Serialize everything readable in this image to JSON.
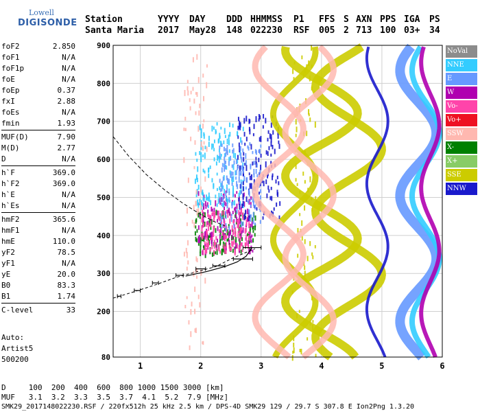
{
  "logo": {
    "top": "Lowell",
    "bottom": "DIGISONDE"
  },
  "header": {
    "labels": [
      "Station",
      "YYYY",
      "DAY",
      "DDD",
      "HHMMSS",
      "P1",
      "FFS",
      "S",
      "AXN",
      "PPS",
      "IGA",
      "PS"
    ],
    "values": [
      "Santa Maria",
      "2017",
      "May28",
      "148",
      "022230",
      "RSF",
      "005",
      "2",
      "713",
      "100",
      "03+",
      "34"
    ]
  },
  "parameters": [
    [
      {
        "name": "foF2",
        "value": "2.850"
      },
      {
        "name": "foF1",
        "value": "N/A"
      },
      {
        "name": "foF1p",
        "value": "N/A"
      },
      {
        "name": "foE",
        "value": "N/A"
      },
      {
        "name": "foEp",
        "value": "0.37"
      },
      {
        "name": "fxI",
        "value": "2.88"
      },
      {
        "name": "foEs",
        "value": "N/A"
      },
      {
        "name": "fmin",
        "value": "1.93"
      }
    ],
    [
      {
        "name": "MUF(D)",
        "value": "7.90"
      },
      {
        "name": "M(D)",
        "value": "2.77"
      },
      {
        "name": "D",
        "value": "N/A"
      }
    ],
    [
      {
        "name": "h`F",
        "value": "369.0"
      },
      {
        "name": "h`F2",
        "value": "369.0"
      },
      {
        "name": "h`E",
        "value": "N/A"
      },
      {
        "name": "h`Es",
        "value": "N/A"
      }
    ],
    [
      {
        "name": "hmF2",
        "value": "365.6"
      },
      {
        "name": "hmF1",
        "value": "N/A"
      },
      {
        "name": "hmE",
        "value": "110.0"
      },
      {
        "name": "yF2",
        "value": "78.5"
      },
      {
        "name": "yF1",
        "value": "N/A"
      },
      {
        "name": "yE",
        "value": "20.0"
      },
      {
        "name": "B0",
        "value": "83.3"
      },
      {
        "name": "B1",
        "value": "1.74"
      }
    ],
    [
      {
        "name": "C-level",
        "value": "33"
      }
    ]
  ],
  "auto": {
    "line1": "Auto:",
    "line2": "Artist5",
    "line3": "500200"
  },
  "legend": [
    {
      "label": "NoVal",
      "color": "#8c8c8c"
    },
    {
      "label": "NNE",
      "color": "#33ccff"
    },
    {
      "label": "E",
      "color": "#6699ff"
    },
    {
      "label": "W",
      "color": "#b000b0"
    },
    {
      "label": "Vo-",
      "color": "#ff44aa"
    },
    {
      "label": "Vo+",
      "color": "#ee1122"
    },
    {
      "label": "SSW",
      "color": "#ffb8b0"
    },
    {
      "label": "X-",
      "color": "#008000"
    },
    {
      "label": "X+",
      "color": "#88cc66"
    },
    {
      "label": "SSE",
      "color": "#cccc00"
    },
    {
      "label": "NNW",
      "color": "#1a1acc"
    }
  ],
  "chart_data": {
    "type": "scatter",
    "x_ticks": [
      "1",
      "2",
      "3",
      "4",
      "5",
      "6"
    ],
    "y_ticks": [
      "80",
      "200",
      "300",
      "400",
      "500",
      "600",
      "700",
      "800",
      "900"
    ],
    "xlim": [
      0.55,
      6.0
    ],
    "ylim": [
      80,
      900
    ],
    "profile_dashed": [
      [
        0.55,
        660
      ],
      [
        0.8,
        610
      ],
      [
        1.1,
        560
      ],
      [
        1.4,
        520
      ],
      [
        1.7,
        485
      ],
      [
        2.0,
        455
      ],
      [
        2.2,
        438
      ],
      [
        2.4,
        425
      ]
    ],
    "true_height": [
      [
        1.75,
        293
      ],
      [
        2.1,
        305
      ],
      [
        2.4,
        318
      ],
      [
        2.6,
        330
      ],
      [
        2.75,
        345
      ],
      [
        2.85,
        368
      ]
    ],
    "virtual_trace": [
      [
        0.55,
        235
      ],
      [
        0.9,
        252
      ],
      [
        1.25,
        270
      ],
      [
        1.6,
        290
      ],
      [
        1.95,
        305
      ],
      [
        2.25,
        318
      ],
      [
        2.5,
        338
      ],
      [
        2.7,
        352
      ],
      [
        2.9,
        365
      ]
    ],
    "error_bars": [
      [
        0.65,
        240,
        0.03
      ],
      [
        0.95,
        255,
        0.05
      ],
      [
        1.25,
        275,
        0.05
      ],
      [
        1.65,
        295,
        0.06
      ],
      [
        2.0,
        312,
        0.08
      ],
      [
        2.3,
        320,
        0.1
      ],
      [
        2.7,
        338,
        0.16
      ],
      [
        2.85,
        368,
        0.15
      ]
    ],
    "echo_clusters": [
      {
        "series": "X-",
        "x": [
          1.9,
          2.9
        ],
        "y": [
          355,
          470
        ]
      },
      {
        "series": "W",
        "x": [
          1.95,
          2.85
        ],
        "y": [
          360,
          520
        ]
      },
      {
        "series": "Vo-",
        "x": [
          2.0,
          2.8
        ],
        "y": [
          360,
          470
        ]
      },
      {
        "series": "NNE",
        "x": [
          1.9,
          2.7
        ],
        "y": [
          480,
          700
        ]
      },
      {
        "series": "NNW",
        "x": [
          2.6,
          3.3
        ],
        "y": [
          450,
          720
        ]
      },
      {
        "series": "E",
        "x": [
          2.3,
          3.0
        ],
        "y": [
          420,
          650
        ]
      },
      {
        "series": "SSW",
        "x": [
          1.7,
          2.1
        ],
        "y": [
          80,
          900
        ]
      },
      {
        "series": "SSE",
        "x": [
          3.5,
          3.9
        ],
        "y": [
          80,
          900
        ]
      }
    ]
  },
  "bottom": {
    "d_row": "D     100  200  400  600  800 1000 1500 3000 [km]",
    "muf_row": "MUF   3.1  3.2  3.3  3.5  3.7  4.1  5.2  7.9 [MHz]",
    "footer": "SMK29_2017148022230.RSF / 220fx512h 25 kHz 2.5 km / DPS-4D SMK29 129 / 29.7 S 307.8 E Ion2Png 1.3.20"
  }
}
